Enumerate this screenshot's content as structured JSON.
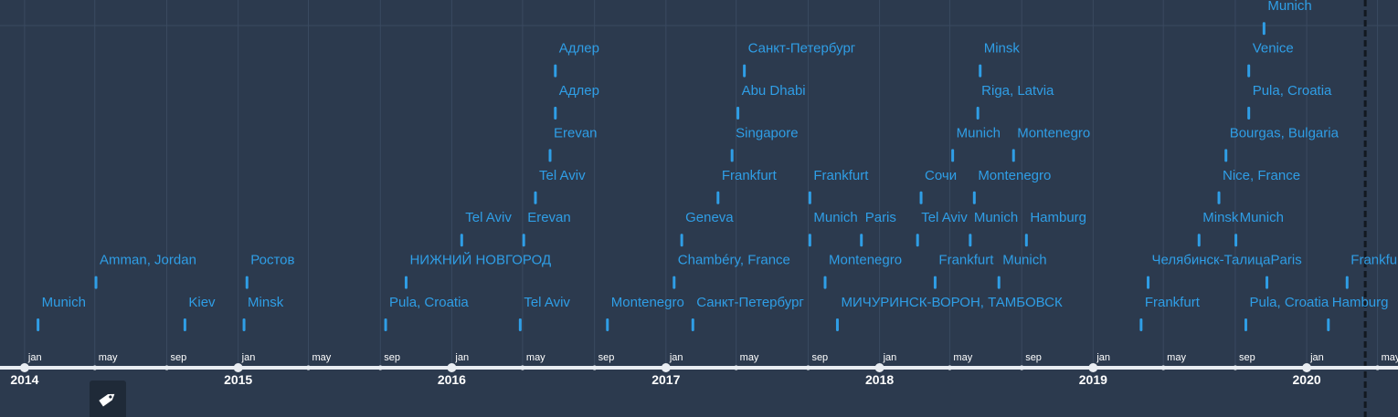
{
  "colors": {
    "background": "#2c3a4e",
    "event": "#2f9ee6",
    "axis": "#e9edf2",
    "grid": "#3a4a60",
    "today": "#121820"
  },
  "chart_data": {
    "type": "timeline",
    "x_range": [
      "2013-11-20",
      "2020-06-05"
    ],
    "today_marker": "2020-04-10",
    "years": [
      {
        "date": "2014-01-01",
        "label": "2014"
      },
      {
        "date": "2015-01-01",
        "label": "2015"
      },
      {
        "date": "2016-01-01",
        "label": "2016"
      },
      {
        "date": "2017-01-01",
        "label": "2017"
      },
      {
        "date": "2018-01-01",
        "label": "2018"
      },
      {
        "date": "2019-01-01",
        "label": "2019"
      },
      {
        "date": "2020-01-01",
        "label": "2020"
      }
    ],
    "months": [
      {
        "date": "2014-01-01",
        "label": "jan"
      },
      {
        "date": "2014-05-01",
        "label": "may"
      },
      {
        "date": "2014-09-01",
        "label": "sep"
      },
      {
        "date": "2015-01-01",
        "label": "jan"
      },
      {
        "date": "2015-05-01",
        "label": "may"
      },
      {
        "date": "2015-09-01",
        "label": "sep"
      },
      {
        "date": "2016-01-01",
        "label": "jan"
      },
      {
        "date": "2016-05-01",
        "label": "may"
      },
      {
        "date": "2016-09-01",
        "label": "sep"
      },
      {
        "date": "2017-01-01",
        "label": "jan"
      },
      {
        "date": "2017-05-01",
        "label": "may"
      },
      {
        "date": "2017-09-01",
        "label": "sep"
      },
      {
        "date": "2018-01-01",
        "label": "jan"
      },
      {
        "date": "2018-05-01",
        "label": "may"
      },
      {
        "date": "2018-09-01",
        "label": "sep"
      },
      {
        "date": "2019-01-01",
        "label": "jan"
      },
      {
        "date": "2019-05-01",
        "label": "may"
      },
      {
        "date": "2019-09-01",
        "label": "sep"
      },
      {
        "date": "2020-01-01",
        "label": "jan"
      },
      {
        "date": "2020-05-01",
        "label": "may"
      }
    ],
    "events": [
      {
        "date": "2014-01-24",
        "label": "Munich",
        "row": 0
      },
      {
        "date": "2014-05-03",
        "label": "Amman, Jordan",
        "row": 1
      },
      {
        "date": "2014-10-02",
        "label": "Kiev",
        "row": 0
      },
      {
        "date": "2015-01-11",
        "label": "Minsk",
        "row": 0
      },
      {
        "date": "2015-01-16",
        "label": "Ростов",
        "row": 1
      },
      {
        "date": "2015-09-10",
        "label": "Pula, Croatia",
        "row": 0
      },
      {
        "date": "2015-10-15",
        "label": "НИЖНИЙ НОВГОРОД",
        "row": 1
      },
      {
        "date": "2016-01-18",
        "label": "Tel Aviv",
        "row": 2
      },
      {
        "date": "2016-04-27",
        "label": "Tel Aviv",
        "row": 0
      },
      {
        "date": "2016-05-03",
        "label": "Erevan",
        "row": 2
      },
      {
        "date": "2016-05-23",
        "label": "Tel Aviv",
        "row": 3
      },
      {
        "date": "2016-06-17",
        "label": "Erevan",
        "row": 4
      },
      {
        "date": "2016-06-26",
        "label": "Адлер",
        "row": 5
      },
      {
        "date": "2016-06-26",
        "label": "Адлер",
        "row": 6
      },
      {
        "date": "2016-09-23",
        "label": "Montenegro",
        "row": 0
      },
      {
        "date": "2017-01-15",
        "label": "Chambéry, France",
        "row": 1
      },
      {
        "date": "2017-01-28",
        "label": "Geneva",
        "row": 2
      },
      {
        "date": "2017-02-16",
        "label": "Санкт-Петербург",
        "row": 0
      },
      {
        "date": "2017-03-31",
        "label": "Frankfurt",
        "row": 3
      },
      {
        "date": "2017-04-24",
        "label": "Singapore",
        "row": 4
      },
      {
        "date": "2017-05-04",
        "label": "Abu Dhabi",
        "row": 5
      },
      {
        "date": "2017-05-15",
        "label": "Санкт-Петербург",
        "row": 6
      },
      {
        "date": "2017-09-04",
        "label": "Frankfurt",
        "row": 3
      },
      {
        "date": "2017-09-04",
        "label": "Munich",
        "row": 2
      },
      {
        "date": "2017-09-30",
        "label": "Montenegro",
        "row": 1
      },
      {
        "date": "2017-10-21",
        "label": "МИЧУРИНСК-ВОРОН, ТАМБОВСК",
        "row": 0
      },
      {
        "date": "2017-12-01",
        "label": "Paris",
        "row": 2
      },
      {
        "date": "2018-03-07",
        "label": "Tel Aviv",
        "row": 2
      },
      {
        "date": "2018-03-13",
        "label": "Сочи",
        "row": 3
      },
      {
        "date": "2018-04-06",
        "label": "Frankfurt",
        "row": 1
      },
      {
        "date": "2018-05-06",
        "label": "Munich",
        "row": 4
      },
      {
        "date": "2018-06-05",
        "label": "Munich",
        "row": 2
      },
      {
        "date": "2018-06-12",
        "label": "Montenegro",
        "row": 3
      },
      {
        "date": "2018-06-18",
        "label": "Riga, Latvia",
        "row": 5
      },
      {
        "date": "2018-06-22",
        "label": "Minsk",
        "row": 6
      },
      {
        "date": "2018-07-24",
        "label": "Munich",
        "row": 1
      },
      {
        "date": "2018-08-18",
        "label": "Montenegro",
        "row": 4
      },
      {
        "date": "2018-09-09",
        "label": "Hamburg",
        "row": 2
      },
      {
        "date": "2019-03-24",
        "label": "Frankfurt",
        "row": 0
      },
      {
        "date": "2019-04-05",
        "label": "Челябинск-Талица",
        "row": 1
      },
      {
        "date": "2019-07-01",
        "label": "Minsk",
        "row": 2
      },
      {
        "date": "2019-08-04",
        "label": "Nice, France",
        "row": 3
      },
      {
        "date": "2019-08-16",
        "label": "Bourgas, Bulgaria",
        "row": 4
      },
      {
        "date": "2019-09-02",
        "label": "Munich",
        "row": 2
      },
      {
        "date": "2019-09-19",
        "label": "Pula, Croatia",
        "row": 0
      },
      {
        "date": "2019-09-24",
        "label": "Pula, Croatia",
        "row": 5
      },
      {
        "date": "2019-09-24",
        "label": "Venice",
        "row": 6
      },
      {
        "date": "2019-10-20",
        "label": "Munich",
        "row": 7
      },
      {
        "date": "2019-10-25",
        "label": "Paris",
        "row": 1
      },
      {
        "date": "2020-02-07",
        "label": "Hamburg",
        "row": 0
      },
      {
        "date": "2020-03-10",
        "label": "Frankfurt",
        "row": 1
      }
    ]
  },
  "controls": {
    "tag_icon": "tag-icon"
  }
}
